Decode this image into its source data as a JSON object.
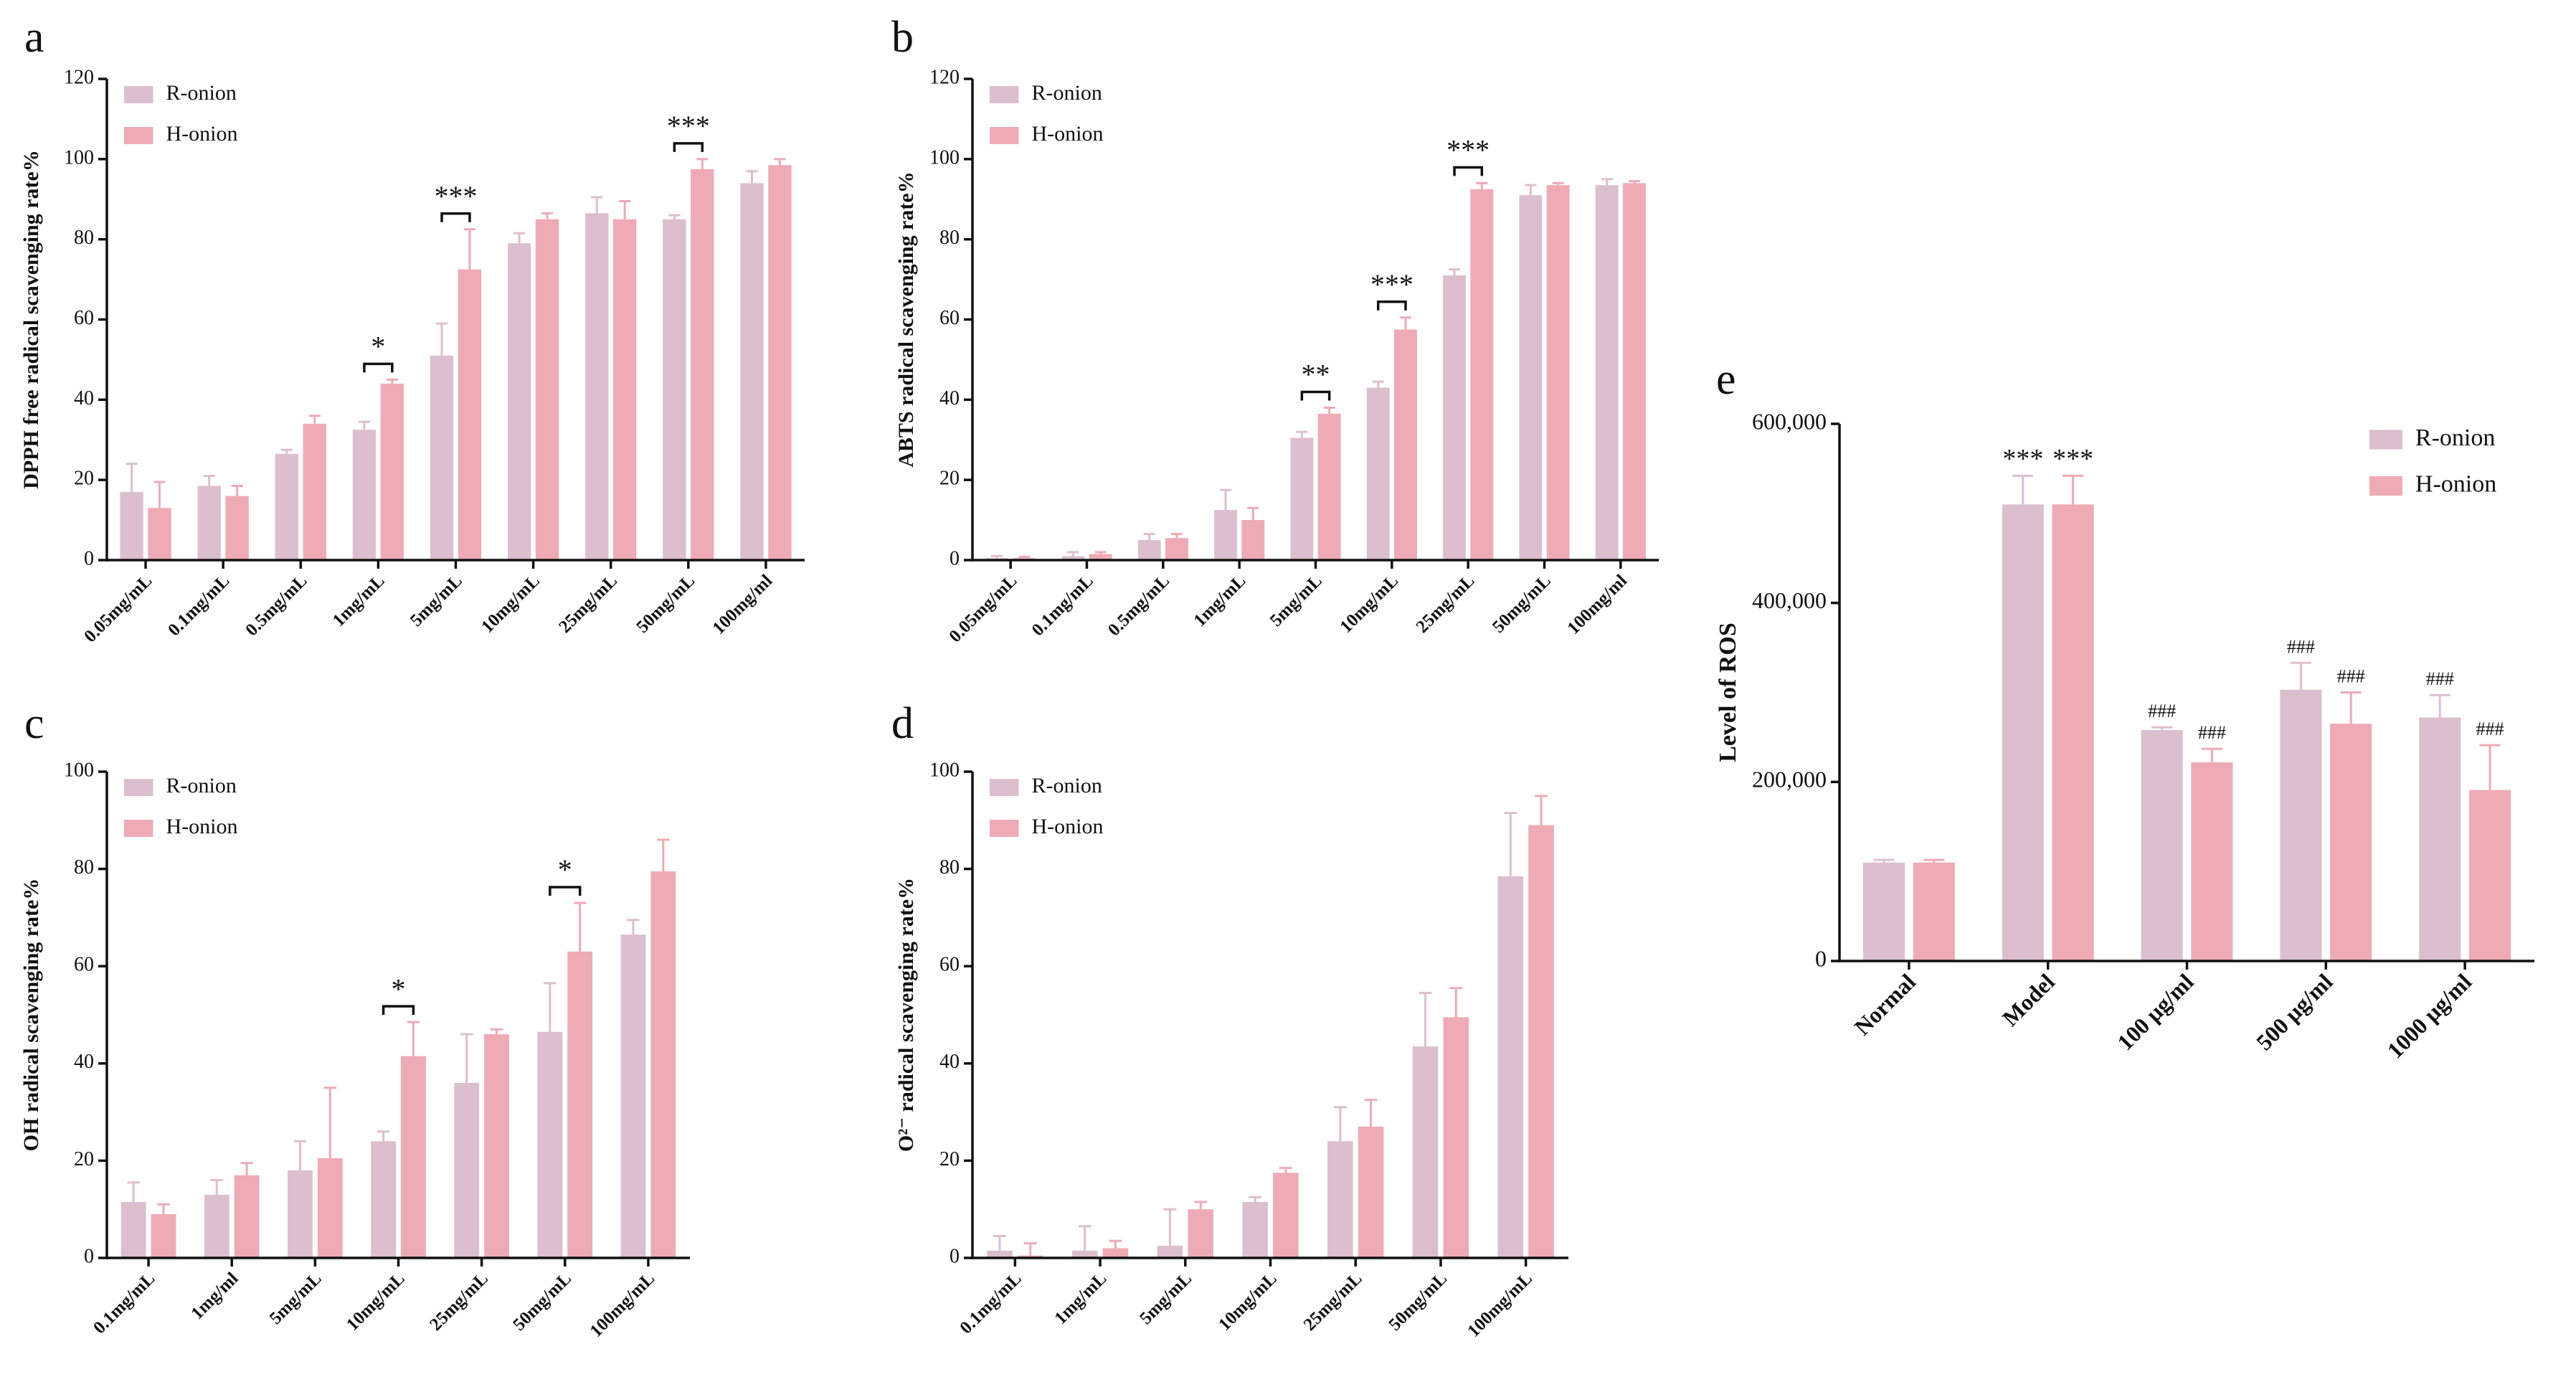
{
  "chart_data": [
    {
      "type": "bar",
      "panel": "a",
      "ylabel": "DPPH free radical scavenging rate%",
      "legend": "upper left",
      "categories": [
        "0.05mg/mL",
        "0.1mg/mL",
        "0.5mg/mL",
        "1mg/mL",
        "5mg/mL",
        "10mg/mL",
        "25mg/mL",
        "50mg/mL",
        "100mg/ml"
      ],
      "series": [
        {
          "name": "R-onion",
          "color": "#dcbfcf",
          "values": [
            17,
            18.5,
            26.5,
            32.5,
            51,
            79,
            86.5,
            85,
            94
          ],
          "errors": [
            7,
            2.5,
            1,
            2,
            8,
            2.5,
            4,
            1,
            3
          ]
        },
        {
          "name": "H-onion",
          "color": "#eeabb5",
          "values": [
            13,
            16,
            34,
            44,
            72.5,
            85,
            85,
            97.5,
            98.5
          ],
          "errors": [
            6.5,
            2.5,
            2,
            1,
            10,
            1.5,
            4.5,
            2.5,
            1.5
          ]
        }
      ],
      "significance": [
        null,
        null,
        null,
        "*",
        "***",
        null,
        null,
        "***",
        null
      ],
      "ylim": [
        0,
        120
      ],
      "yticks": [
        0,
        20,
        40,
        60,
        80,
        100,
        120
      ]
    },
    {
      "type": "bar",
      "panel": "b",
      "ylabel": "ABTS radical scavenging rate%",
      "legend": "upper left",
      "categories": [
        "0.05mg/mL",
        "0.1mg/mL",
        "0.5mg/mL",
        "1mg/mL",
        "5mg/mL",
        "10mg/mL",
        "25mg/mL",
        "50mg/mL",
        "100mg/ml"
      ],
      "series": [
        {
          "name": "R-onion",
          "color": "#dcbfcf",
          "values": [
            0.5,
            1,
            5,
            12.5,
            30.5,
            43,
            71,
            91,
            93.5
          ],
          "errors": [
            0.5,
            1,
            1.5,
            5,
            1.5,
            1.5,
            1.5,
            2.5,
            1.5
          ]
        },
        {
          "name": "H-onion",
          "color": "#eeabb5",
          "values": [
            0.5,
            1.5,
            5.5,
            10,
            36.5,
            57.5,
            92.5,
            93.5,
            94
          ],
          "errors": [
            0.3,
            0.5,
            1,
            3,
            1.5,
            3,
            1.5,
            0.5,
            0.5
          ]
        }
      ],
      "significance": [
        null,
        null,
        null,
        null,
        "**",
        "***",
        "***",
        null,
        null
      ],
      "ylim": [
        0,
        120
      ],
      "yticks": [
        0,
        20,
        40,
        60,
        80,
        100,
        120
      ]
    },
    {
      "type": "bar",
      "panel": "c",
      "ylabel": "OH radical scavenging rate%",
      "legend": "upper left",
      "categories": [
        "0.1mg/mL",
        "1mg/ml",
        "5mg/mL",
        "10mg/mL",
        "25mg/mL",
        "50mg/mL",
        "100mg/mL"
      ],
      "series": [
        {
          "name": "R-onion",
          "color": "#dcbfcf",
          "values": [
            11.5,
            13,
            18,
            24,
            36,
            46.5,
            66.5
          ],
          "errors": [
            4,
            3,
            6,
            2,
            10,
            10,
            3
          ]
        },
        {
          "name": "H-onion",
          "color": "#eeabb5",
          "values": [
            9,
            17,
            20.5,
            41.5,
            46,
            63,
            79.5
          ],
          "errors": [
            2,
            2.5,
            14.5,
            7,
            1,
            10,
            6.5
          ]
        }
      ],
      "significance": [
        null,
        null,
        null,
        "*",
        null,
        "*",
        null
      ],
      "ylim": [
        0,
        100
      ],
      "yticks": [
        0,
        20,
        40,
        60,
        80,
        100
      ]
    },
    {
      "type": "bar",
      "panel": "d",
      "ylabel": "O²⁻ radical scavenging rate%",
      "legend": "upper left",
      "categories": [
        "0.1mg/mL",
        "1mg/mL",
        "5mg/mL",
        "10mg/mL",
        "25mg/mL",
        "50mg/mL",
        "100mg/mL"
      ],
      "series": [
        {
          "name": "R-onion",
          "color": "#dcbfcf",
          "values": [
            1.5,
            1.5,
            2.5,
            11.5,
            24,
            43.5,
            78.5
          ],
          "errors": [
            3,
            5,
            7.5,
            1,
            7,
            11,
            13
          ]
        },
        {
          "name": "H-onion",
          "color": "#eeabb5",
          "values": [
            0.5,
            2,
            10,
            17.5,
            27,
            49.5,
            89
          ],
          "errors": [
            2.5,
            1.5,
            1.5,
            1,
            5.5,
            6,
            6
          ]
        }
      ],
      "ylim": [
        0,
        100
      ],
      "yticks": [
        0,
        20,
        40,
        60,
        80,
        100
      ]
    },
    {
      "type": "bar",
      "panel": "e",
      "ylabel": "Level of ROS",
      "legend": "upper right",
      "categories": [
        "Normal",
        "Model",
        "100 μg/ml",
        "500 μg/ml",
        "1000 μg/ml"
      ],
      "series": [
        {
          "name": "R-onion",
          "color": "#dcbfcf",
          "values": [
            110000,
            510000,
            258000,
            303000,
            272000
          ],
          "errors": [
            3000,
            32000,
            3000,
            30000,
            25000
          ],
          "significance": [
            null,
            "***",
            "###",
            "###",
            "###"
          ]
        },
        {
          "name": "H-onion",
          "color": "#eeabb5",
          "values": [
            110000,
            510000,
            222000,
            265000,
            191000
          ],
          "errors": [
            3000,
            32000,
            15000,
            35000,
            50000
          ],
          "significance": [
            null,
            "***",
            "###",
            "###",
            "###"
          ]
        }
      ],
      "ylim": [
        0,
        600000
      ],
      "yticks": [
        0,
        {
          "value": 200000,
          "label": "200,000"
        },
        {
          "value": 400000,
          "label": "400,000"
        },
        {
          "value": 600000,
          "label": "600,000"
        }
      ]
    }
  ]
}
